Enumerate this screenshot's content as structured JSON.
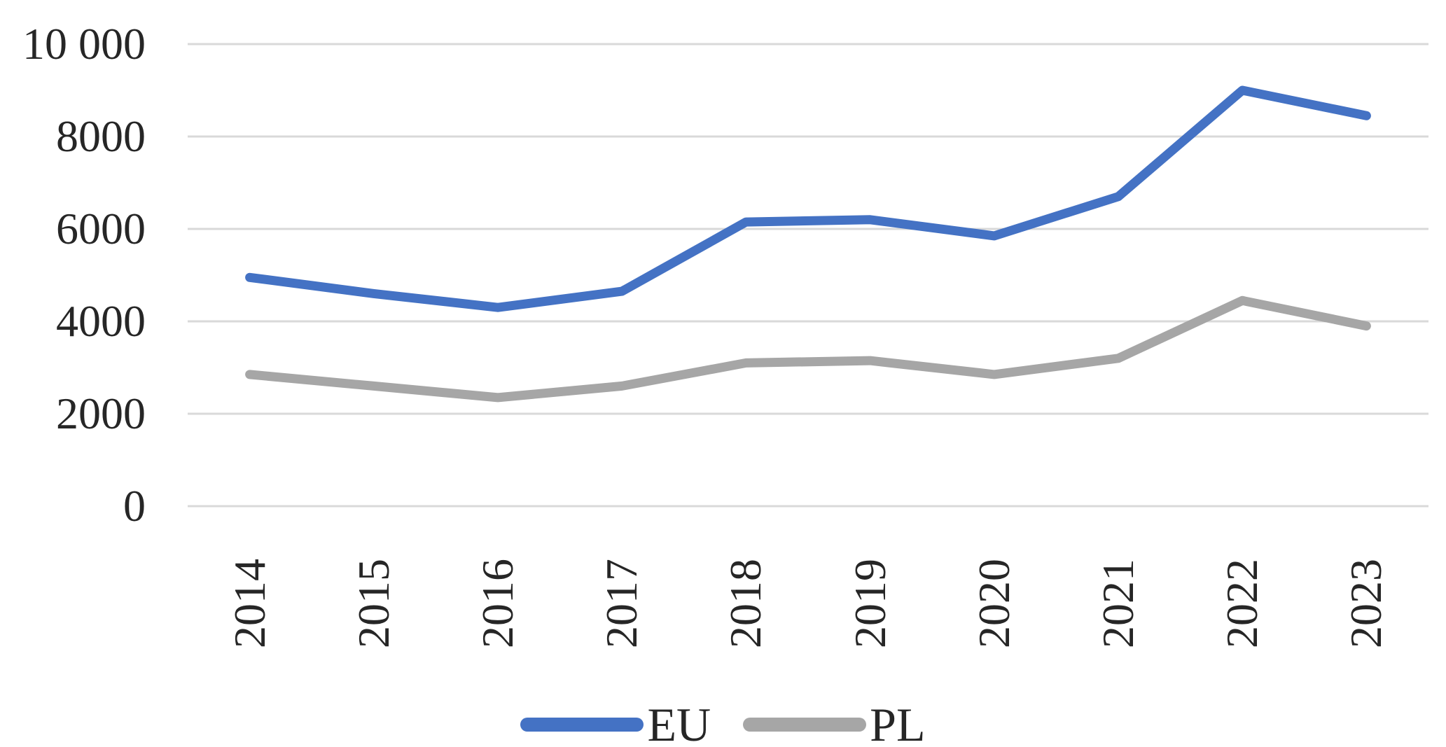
{
  "chart_data": {
    "type": "line",
    "categories": [
      "2014",
      "2015",
      "2016",
      "2017",
      "2018",
      "2019",
      "2020",
      "2021",
      "2022",
      "2023"
    ],
    "series": [
      {
        "name": "EU",
        "color": "#4472C4",
        "values": [
          4950,
          4600,
          4300,
          4650,
          6150,
          6200,
          5850,
          6700,
          9000,
          8450
        ]
      },
      {
        "name": "PL",
        "color": "#A6A6A6",
        "values": [
          2850,
          2600,
          2350,
          2600,
          3100,
          3150,
          2850,
          3200,
          4450,
          3900
        ]
      }
    ],
    "title": "",
    "xlabel": "",
    "ylabel": "",
    "ylim": [
      0,
      10000
    ],
    "yticks": [
      0,
      2000,
      4000,
      6000,
      8000,
      10000
    ],
    "ytick_labels": [
      "0",
      "2000",
      "4000",
      "6000",
      "8000",
      "10 000"
    ],
    "grid": "horizontal-gridlines",
    "legend_position": "bottom-center"
  },
  "style": {
    "background": "#FFFFFF",
    "gridline_color": "#D9D9D9",
    "text_color": "#262626",
    "series_line_width": 13,
    "gridline_width": 3
  }
}
